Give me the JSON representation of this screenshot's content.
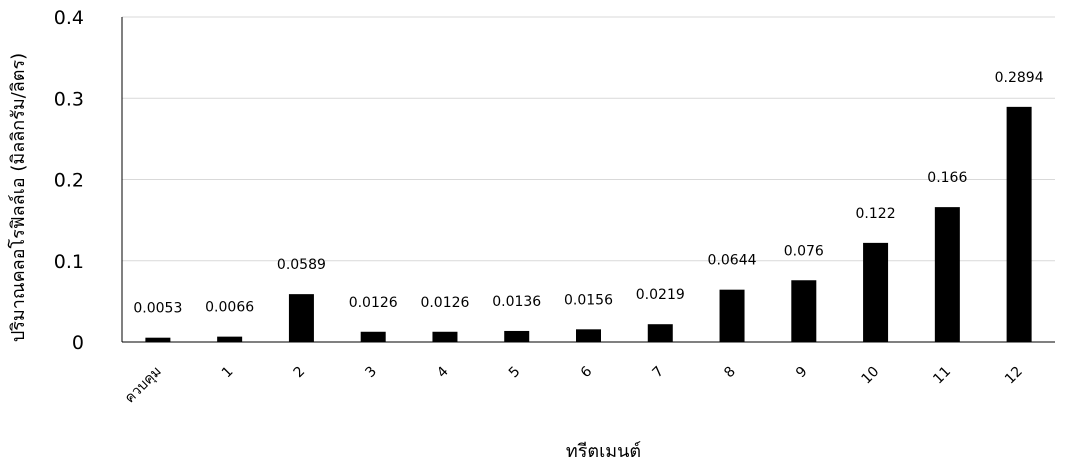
{
  "chart_data": {
    "type": "bar",
    "title": "",
    "xlabel": "ทรีตเมนต์",
    "ylabel": "ปริมาณคลอโรฟิลล์เอ (มิลลิกรัม/ลิตร)",
    "categories": [
      "ควบคุม",
      "1",
      "2",
      "3",
      "4",
      "5",
      "6",
      "7",
      "8",
      "9",
      "10",
      "11",
      "12"
    ],
    "values": [
      0.0053,
      0.0066,
      0.0589,
      0.0126,
      0.0126,
      0.0136,
      0.0156,
      0.0219,
      0.0644,
      0.076,
      0.122,
      0.166,
      0.2894
    ],
    "data_labels": [
      "0.0053",
      "0.0066",
      "0.0589",
      "0.0126",
      "0.0126",
      "0.0136",
      "0.0156",
      "0.0219",
      "0.0644",
      "0.076",
      "0.122",
      "0.166",
      "0.2894"
    ],
    "ylim": [
      0,
      0.4
    ],
    "yticks": [
      "0",
      "0.1",
      "0.2",
      "0.3",
      "0.4"
    ],
    "grid": true,
    "legend": "none",
    "bar_color": "#000000",
    "grid_color": "#d9d9d9"
  }
}
